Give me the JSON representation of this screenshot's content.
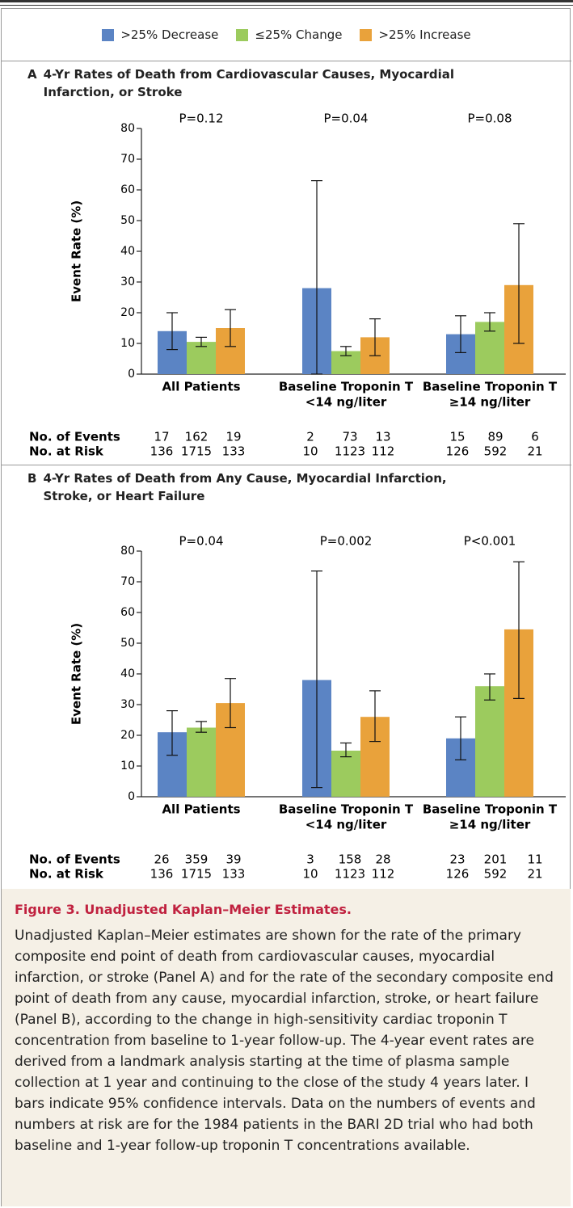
{
  "chart_data": [
    {
      "type": "bar",
      "panel": "A",
      "title": "4-Yr Rates of Death from Cardiovascular Causes, Myocardial Infarction, or Stroke",
      "y_label": "Event Rate (%)",
      "categories": [
        [
          "All Patients"
        ],
        [
          "Baseline Troponin T",
          "<14 ng/liter"
        ],
        [
          "Baseline Troponin T",
          "≥14 ng/liter"
        ]
      ],
      "p_values": [
        "P=0.12",
        "P=0.04",
        "P=0.08"
      ],
      "ylim": [
        0,
        80
      ],
      "yticks": [
        0,
        10,
        20,
        30,
        40,
        50,
        60,
        70,
        80
      ],
      "series": [
        {
          "name": ">25% Decrease",
          "color": "#5b84c4",
          "values": [
            14,
            28,
            13
          ],
          "ci_low": [
            8,
            0,
            7
          ],
          "ci_high": [
            20,
            63,
            19
          ]
        },
        {
          "name": "≤25% Change",
          "color": "#9ccb5e",
          "values": [
            10.5,
            7.5,
            17
          ],
          "ci_low": [
            9,
            6,
            14
          ],
          "ci_high": [
            12,
            9,
            20
          ]
        },
        {
          "name": ">25% Increase",
          "color": "#e9a23b",
          "values": [
            15,
            12,
            29
          ],
          "ci_low": [
            9,
            6,
            10
          ],
          "ci_high": [
            21,
            18,
            49
          ]
        }
      ],
      "table": {
        "row_labels": [
          "No. of Events",
          "No. at Risk"
        ],
        "rows": [
          [
            17,
            162,
            19,
            2,
            73,
            13,
            15,
            89,
            6
          ],
          [
            136,
            1715,
            133,
            10,
            1123,
            112,
            126,
            592,
            21
          ]
        ]
      }
    },
    {
      "type": "bar",
      "panel": "B",
      "title": "4-Yr Rates of Death from Any Cause, Myocardial Infarction, Stroke, or Heart Failure",
      "y_label": "Event Rate (%)",
      "categories": [
        [
          "All Patients"
        ],
        [
          "Baseline Troponin T",
          "<14 ng/liter"
        ],
        [
          "Baseline Troponin T",
          "≥14 ng/liter"
        ]
      ],
      "p_values": [
        "P=0.04",
        "P=0.002",
        "P<0.001"
      ],
      "ylim": [
        0,
        80
      ],
      "yticks": [
        0,
        10,
        20,
        30,
        40,
        50,
        60,
        70,
        80
      ],
      "series": [
        {
          "color": "#5b84c4",
          "values": [
            21,
            38,
            19
          ],
          "ci_low": [
            13.5,
            3,
            12
          ],
          "ci_high": [
            28,
            73.5,
            26
          ]
        },
        {
          "color": "#9ccb5e",
          "values": [
            22.5,
            15,
            36
          ],
          "ci_low": [
            21,
            13,
            31.5
          ],
          "ci_high": [
            24.5,
            17.5,
            40
          ]
        },
        {
          "color": "#e9a23b",
          "values": [
            30.5,
            26,
            54.5
          ],
          "ci_low": [
            22.5,
            18,
            32
          ],
          "ci_high": [
            38.5,
            34.5,
            76.5
          ]
        }
      ],
      "table": {
        "row_labels": [
          "No. of Events",
          "No. at Risk"
        ],
        "rows": [
          [
            26,
            359,
            39,
            3,
            158,
            28,
            23,
            201,
            11
          ],
          [
            136,
            1715,
            133,
            10,
            1123,
            112,
            126,
            592,
            21
          ]
        ]
      }
    }
  ],
  "caption": {
    "label": "Figure 3.",
    "title": "Unadjusted Kaplan–Meier Estimates.",
    "text": "Unadjusted Kaplan–Meier estimates are shown for the rate of the primary composite end point of death from cardiovascular causes, myocardial infarction, or stroke (Panel A) and for the rate of the secondary composite end point of death from any cause, myocardial infarction, stroke, or heart failure (Panel B), according to the change in high-sensitivity cardiac troponin T concentration from baseline to 1-year follow-up. The 4-year event rates are derived from a landmark analysis starting at the time of plasma sample collection at 1 year and continuing to the close of the study 4 years later. I bars indicate 95% confidence intervals. Data on the numbers of events and numbers at risk are for the 1984 patients in the BARI 2D trial who had both baseline and 1-year follow-up troponin T concentrations available."
  }
}
